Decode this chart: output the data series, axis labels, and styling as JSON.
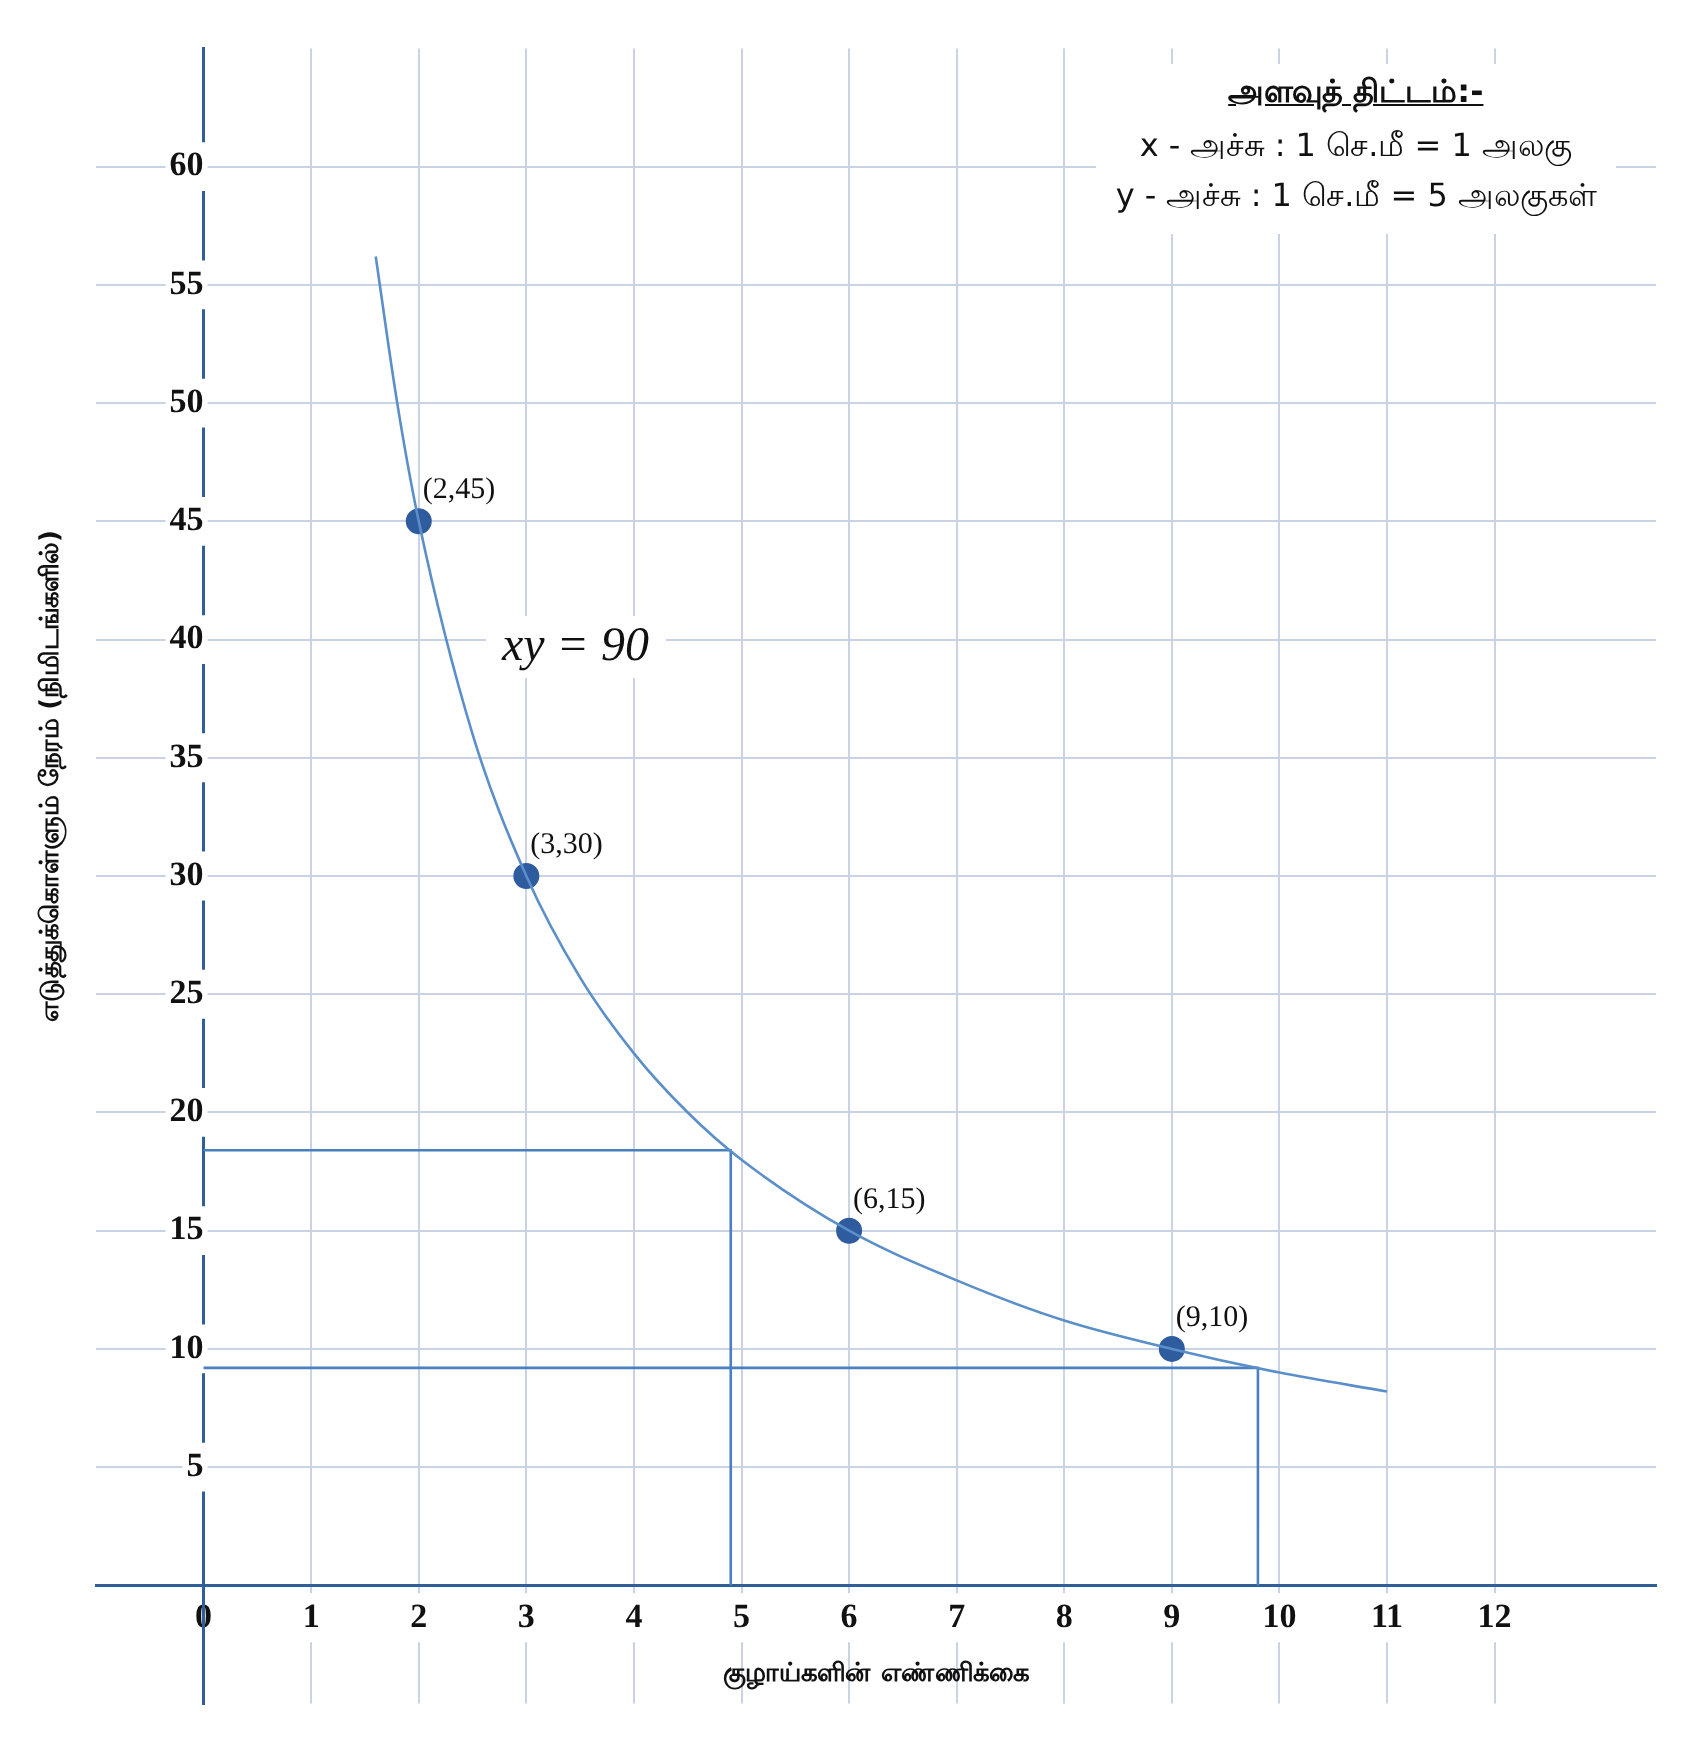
{
  "chart_data": {
    "type": "scatter",
    "title": "அளவுத் திட்டம்:-",
    "subtitle": "x - அச்சு : 1 செ.மீ = 1 அலகு\ny - அச்சு : 1 செ.மீ = 5 அலகுகள்",
    "xlabel": "குழாய்களின் எண்ணிக்கை",
    "ylabel": "எடுத்துக்கொள்ளும் நேரம் (நிமிடங்களில்)",
    "series": [
      {
        "type": "line",
        "color": "#5b8fc9",
        "marker": "none",
        "x": [
          1.6,
          1.8,
          2,
          2.5,
          3,
          3.5,
          4,
          4.5,
          5,
          6,
          7,
          8,
          9,
          10,
          11
        ],
        "values": [
          56.2,
          50,
          45,
          36,
          30,
          25.7,
          22.5,
          20,
          18,
          15,
          12.9,
          11.2,
          10,
          9,
          8.2
        ]
      },
      {
        "type": "scatter",
        "color": "#2e5c9e",
        "marker": "circle",
        "x": [
          2,
          3,
          6,
          9
        ],
        "values": [
          45,
          30,
          15,
          10
        ]
      },
      {
        "type": "line",
        "color": "#4a7fc0",
        "marker": "none",
        "x": [
          0,
          4.9,
          4.9
        ],
        "values": [
          18.4,
          18.4,
          0
        ]
      },
      {
        "type": "line",
        "color": "#4a7fc0",
        "marker": "none",
        "x": [
          0,
          9.8,
          9.8
        ],
        "values": [
          9.2,
          9.2,
          0
        ]
      }
    ],
    "annotations": [
      {
        "text": "(2,45)",
        "x": 2,
        "y": 45
      },
      {
        "text": "(3,30)",
        "x": 3,
        "y": 30
      },
      {
        "text": "(6,15)",
        "x": 6,
        "y": 15
      },
      {
        "text": "(9,10)",
        "x": 9,
        "y": 10
      },
      "xy = 90"
    ],
    "xlim": [
      -1,
      13.5
    ],
    "ylim": [
      -5,
      65
    ],
    "xticks": [
      0,
      1,
      2,
      3,
      4,
      5,
      6,
      7,
      8,
      9,
      10,
      11,
      12
    ],
    "yticks": [
      5,
      10,
      15,
      20,
      25,
      30,
      35,
      40,
      45,
      50,
      55,
      60
    ],
    "grid": true,
    "legend": false
  }
}
